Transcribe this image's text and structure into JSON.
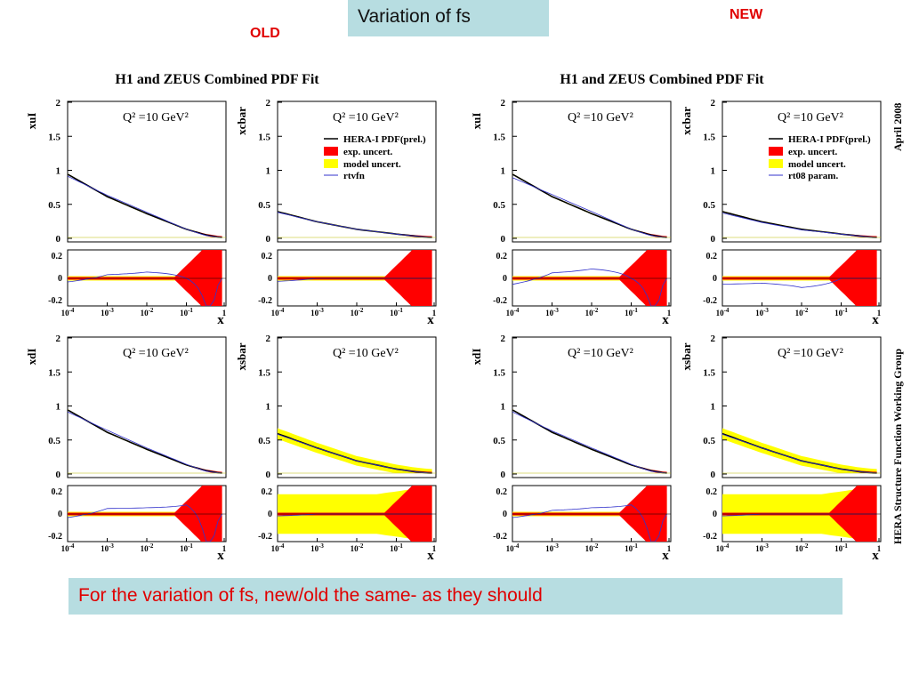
{
  "header": {
    "title": "Variation of fs",
    "label_old": "OLD",
    "label_new": "NEW"
  },
  "footer": {
    "comment": "For the variation of fs, new/old  the same- as they should"
  },
  "colors": {
    "exp_uncert": "#ff0000",
    "model_uncert": "#ffff00",
    "central": "#000000",
    "alt_param": "#3333cc",
    "title_box": "#b7dde1",
    "accent_text": "#e00000"
  },
  "side_text": {
    "date": "April 2008",
    "group": "HERA Structure Function Working Group"
  },
  "chart_data": [
    {
      "group": "OLD",
      "title": "H1 and ZEUS Combined PDF Fit",
      "legend": [
        "HERA-I PDF(prel.)",
        "exp. uncert.",
        "model uncert.",
        "rtvfn"
      ],
      "panels": [
        {
          "ylabel": "xuI",
          "q2": "Q² =10 GeV²",
          "show_legend": false,
          "type": "line",
          "xlog": true,
          "xlim": [
            0.0001,
            1
          ],
          "ylim": [
            0,
            2
          ],
          "ratio_ylim": [
            -0.25,
            0.25
          ],
          "x": [
            0.0001,
            0.001,
            0.01,
            0.1,
            0.3,
            0.7
          ],
          "central": [
            0.93,
            0.6,
            0.35,
            0.12,
            0.04,
            0.0
          ],
          "alt": [
            0.9,
            0.62,
            0.37,
            0.12,
            0.03,
            0.0
          ]
        },
        {
          "ylabel": "xcbar",
          "q2": "Q² =10 GeV²",
          "show_legend": true,
          "type": "line",
          "xlog": true,
          "xlim": [
            0.0001,
            1
          ],
          "ylim": [
            0,
            2
          ],
          "ratio_ylim": [
            -0.25,
            0.25
          ],
          "x": [
            0.0001,
            0.001,
            0.01,
            0.1,
            0.3,
            0.7
          ],
          "central": [
            0.38,
            0.23,
            0.12,
            0.05,
            0.02,
            0.0
          ],
          "alt": [
            0.37,
            0.23,
            0.12,
            0.05,
            0.02,
            0.0
          ]
        },
        {
          "ylabel": "xdI",
          "q2": "Q² =10 GeV²",
          "show_legend": false,
          "type": "line",
          "xlog": true,
          "xlim": [
            0.0001,
            1
          ],
          "ylim": [
            0,
            2
          ],
          "ratio_ylim": [
            -0.25,
            0.25
          ],
          "x": [
            0.0001,
            0.001,
            0.01,
            0.1,
            0.3,
            0.7
          ],
          "central": [
            0.93,
            0.6,
            0.35,
            0.12,
            0.04,
            0.0
          ],
          "alt": [
            0.9,
            0.63,
            0.37,
            0.13,
            0.03,
            0.0
          ]
        },
        {
          "ylabel": "xsbar",
          "q2": "Q² =10 GeV²",
          "show_legend": false,
          "type": "line",
          "xlog": true,
          "xlim": [
            0.0001,
            1
          ],
          "ylim": [
            0,
            2
          ],
          "ratio_ylim": [
            -0.25,
            0.25
          ],
          "x": [
            0.0001,
            0.001,
            0.01,
            0.1,
            0.3,
            0.7
          ],
          "central": [
            0.58,
            0.37,
            0.18,
            0.06,
            0.02,
            0.0
          ],
          "alt": [
            0.57,
            0.37,
            0.18,
            0.06,
            0.02,
            0.0
          ]
        }
      ]
    },
    {
      "group": "NEW",
      "title": "H1 and ZEUS Combined PDF Fit",
      "legend": [
        "HERA-I PDF(prel.)",
        "exp. uncert.",
        "model uncert.",
        "rt08 param."
      ],
      "panels": [
        {
          "ylabel": "xuI",
          "q2": "Q² =10 GeV²",
          "show_legend": false,
          "type": "line",
          "xlog": true,
          "xlim": [
            0.0001,
            1
          ],
          "ylim": [
            0,
            2
          ],
          "ratio_ylim": [
            -0.25,
            0.25
          ],
          "x": [
            0.0001,
            0.001,
            0.01,
            0.1,
            0.3,
            0.7
          ],
          "central": [
            0.93,
            0.6,
            0.35,
            0.12,
            0.04,
            0.0
          ],
          "alt": [
            0.88,
            0.63,
            0.38,
            0.12,
            0.03,
            0.0
          ]
        },
        {
          "ylabel": "xcbar",
          "q2": "Q² =10 GeV²",
          "show_legend": true,
          "type": "line",
          "xlog": true,
          "xlim": [
            0.0001,
            1
          ],
          "ylim": [
            0,
            2
          ],
          "ratio_ylim": [
            -0.25,
            0.25
          ],
          "x": [
            0.0001,
            0.001,
            0.01,
            0.1,
            0.3,
            0.7
          ],
          "central": [
            0.38,
            0.23,
            0.12,
            0.05,
            0.02,
            0.0
          ],
          "alt": [
            0.36,
            0.22,
            0.11,
            0.05,
            0.02,
            0.0
          ]
        },
        {
          "ylabel": "xdI",
          "q2": "Q² =10 GeV²",
          "show_legend": false,
          "type": "line",
          "xlog": true,
          "xlim": [
            0.0001,
            1
          ],
          "ylim": [
            0,
            2
          ],
          "ratio_ylim": [
            -0.25,
            0.25
          ],
          "x": [
            0.0001,
            0.001,
            0.01,
            0.1,
            0.3,
            0.7
          ],
          "central": [
            0.93,
            0.6,
            0.35,
            0.12,
            0.04,
            0.0
          ],
          "alt": [
            0.9,
            0.62,
            0.37,
            0.13,
            0.03,
            0.0
          ]
        },
        {
          "ylabel": "xsbar",
          "q2": "Q² =10 GeV²",
          "show_legend": false,
          "type": "line",
          "xlog": true,
          "xlim": [
            0.0001,
            1
          ],
          "ylim": [
            0,
            2
          ],
          "ratio_ylim": [
            -0.25,
            0.25
          ],
          "x": [
            0.0001,
            0.001,
            0.01,
            0.1,
            0.3,
            0.7
          ],
          "central": [
            0.58,
            0.37,
            0.18,
            0.06,
            0.02,
            0.0
          ],
          "alt": [
            0.57,
            0.37,
            0.18,
            0.06,
            0.02,
            0.0
          ]
        }
      ]
    }
  ],
  "axes": {
    "y_ticks": [
      "2",
      "1.5",
      "1",
      "0.5",
      "0"
    ],
    "ratio_ticks": [
      "0.2",
      "0",
      "-0.2"
    ],
    "x_ticks": [
      "10",
      "10",
      "10",
      "10",
      "1"
    ],
    "x_exponents": [
      "-4",
      "-3",
      "-2",
      "-1",
      ""
    ],
    "x_label": "x"
  }
}
